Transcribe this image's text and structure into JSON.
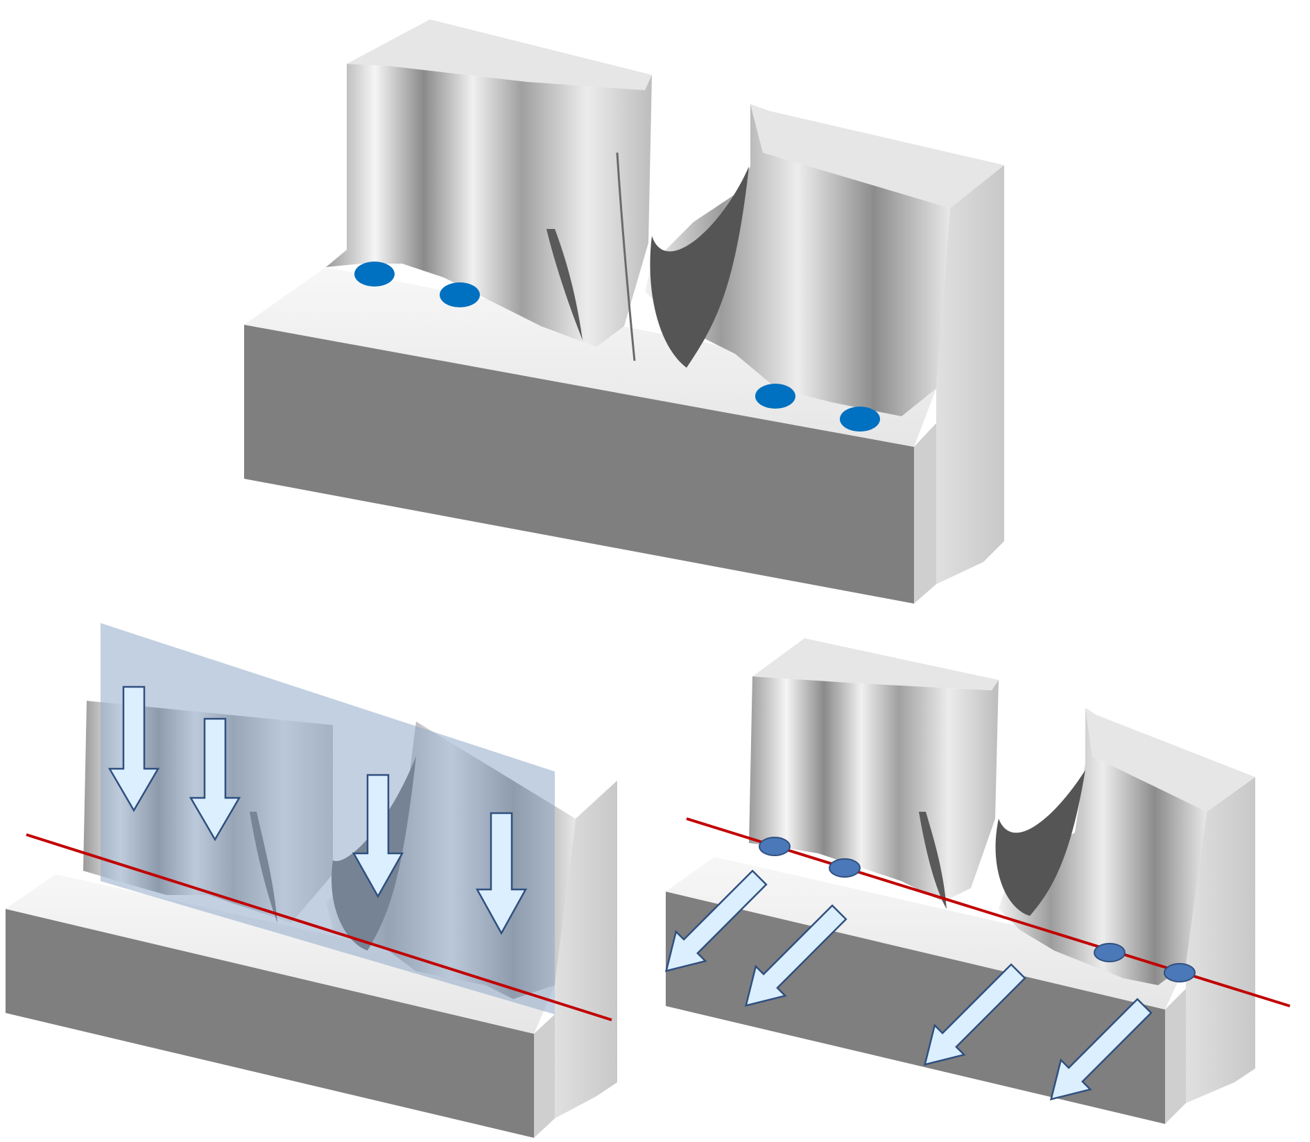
{
  "colors": {
    "background": "#ffffff",
    "block_top": "#ececec",
    "block_front": "#7f7f7f",
    "block_side": "#d6d6d6",
    "wall_light": "#f2f2f2",
    "wall_dark": "#6b6b6b",
    "shadow": "#555555",
    "contact_dot": "#0070c0",
    "contact_dot_muted": "#4a78b8",
    "arrow_fill": "#dcefff",
    "arrow_stroke": "#2f4f7f",
    "plane_fill": "#8fa9c9",
    "line": "#c00000"
  },
  "panels": [
    {
      "id": "top",
      "description_icons": [
        "contact-dot",
        "contact-dot",
        "contact-dot",
        "contact-dot"
      ]
    },
    {
      "id": "bottom-left",
      "arrow_direction": "down",
      "has_plane": true
    },
    {
      "id": "bottom-right",
      "arrow_direction": "down-left",
      "has_plane": false
    }
  ]
}
